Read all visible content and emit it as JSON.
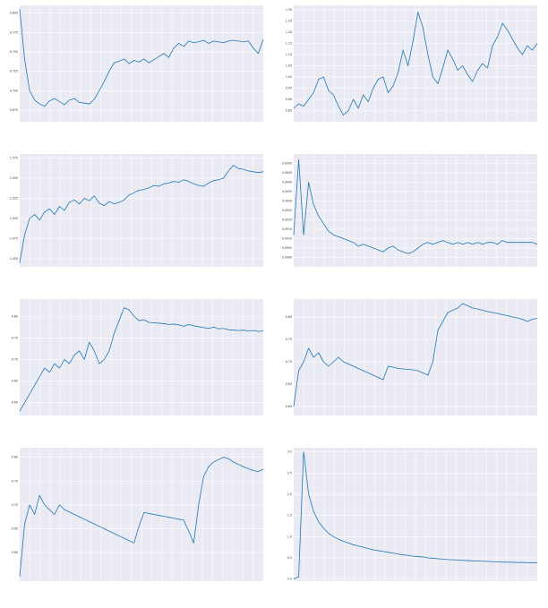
{
  "chart_data": [
    {
      "type": "line",
      "title": "",
      "xlabel": "",
      "ylabel": "",
      "ylim": [
        0.66,
        0.81
      ],
      "yticks": [
        "0.800",
        "0.775",
        "0.750",
        "0.725",
        "0.700",
        "0.675"
      ],
      "grid": true,
      "legend": "none",
      "series": [
        {
          "values": [
            0.805,
            0.74,
            0.7,
            0.688,
            0.683,
            0.68,
            0.687,
            0.69,
            0.686,
            0.682,
            0.688,
            0.69,
            0.685,
            0.684,
            0.683,
            0.689,
            0.7,
            0.712,
            0.725,
            0.736,
            0.738,
            0.741,
            0.735,
            0.739,
            0.737,
            0.741,
            0.736,
            0.74,
            0.744,
            0.748,
            0.743,
            0.755,
            0.761,
            0.757,
            0.764,
            0.762,
            0.763,
            0.765,
            0.761,
            0.764,
            0.763,
            0.762,
            0.764,
            0.765,
            0.764,
            0.763,
            0.764,
            0.755,
            0.748,
            0.766
          ]
        }
      ]
    },
    {
      "type": "line",
      "title": "",
      "xlabel": "",
      "ylabel": "",
      "ylim": [
        0.8,
        1.32
      ],
      "yticks": [
        "1.30",
        "1.25",
        "1.20",
        "1.15",
        "1.10",
        "1.05",
        "1.00",
        "0.95",
        "0.90",
        "0.85"
      ],
      "grid": true,
      "legend": "none",
      "series": [
        {
          "values": [
            0.86,
            0.88,
            0.87,
            0.9,
            0.93,
            0.99,
            1.0,
            0.94,
            0.92,
            0.87,
            0.83,
            0.85,
            0.9,
            0.86,
            0.92,
            0.89,
            0.95,
            0.99,
            1.0,
            0.93,
            0.96,
            1.02,
            1.12,
            1.05,
            1.16,
            1.29,
            1.22,
            1.1,
            1.0,
            0.97,
            1.04,
            1.12,
            1.08,
            1.03,
            1.05,
            1.01,
            0.98,
            1.03,
            1.06,
            1.04,
            1.14,
            1.18,
            1.24,
            1.21,
            1.17,
            1.13,
            1.1,
            1.14,
            1.12,
            1.15
          ]
        }
      ]
    },
    {
      "type": "line",
      "title": "",
      "xlabel": "",
      "ylabel": "",
      "ylim": [
        1.44,
        1.58
      ],
      "yticks": [
        "1.575",
        "1.550",
        "1.525",
        "1.500",
        "1.475",
        "1.450"
      ],
      "grid": true,
      "legend": "none",
      "series": [
        {
          "values": [
            1.445,
            1.48,
            1.5,
            1.505,
            1.498,
            1.508,
            1.512,
            1.505,
            1.515,
            1.51,
            1.52,
            1.523,
            1.518,
            1.525,
            1.522,
            1.528,
            1.519,
            1.516,
            1.521,
            1.518,
            1.52,
            1.523,
            1.529,
            1.532,
            1.535,
            1.536,
            1.538,
            1.541,
            1.54,
            1.543,
            1.544,
            1.546,
            1.545,
            1.548,
            1.546,
            1.543,
            1.541,
            1.54,
            1.544,
            1.547,
            1.548,
            1.55,
            1.559,
            1.566,
            1.562,
            1.561,
            1.559,
            1.558,
            1.557,
            1.558
          ]
        }
      ]
    },
    {
      "type": "line",
      "title": "",
      "xlabel": "",
      "ylabel": "",
      "ylim": [
        0.0895,
        0.0955
      ],
      "yticks": [
        "0.0950",
        "0.0945",
        "0.0940",
        "0.0935",
        "0.0930",
        "0.0925",
        "0.0920",
        "0.0915",
        "0.0910",
        "0.0905",
        "0.0900"
      ],
      "grid": true,
      "legend": "none",
      "series": [
        {
          "values": [
            0.0912,
            0.0952,
            0.0912,
            0.094,
            0.0928,
            0.0922,
            0.0918,
            0.0914,
            0.0912,
            0.0911,
            0.091,
            0.0909,
            0.0908,
            0.0906,
            0.0907,
            0.0906,
            0.0905,
            0.0904,
            0.0903,
            0.0905,
            0.0906,
            0.0904,
            0.0903,
            0.0902,
            0.0903,
            0.0905,
            0.0907,
            0.0908,
            0.0907,
            0.0908,
            0.0909,
            0.0908,
            0.0907,
            0.0908,
            0.0907,
            0.0908,
            0.0907,
            0.0908,
            0.0907,
            0.0908,
            0.0908,
            0.0907,
            0.0909,
            0.0908,
            0.0908,
            0.0908,
            0.0908,
            0.0908,
            0.0908,
            0.0907
          ]
        }
      ]
    },
    {
      "type": "line",
      "title": "",
      "xlabel": "",
      "ylabel": "",
      "ylim": [
        0.57,
        0.84
      ],
      "yticks": [
        "0.80",
        "0.75",
        "0.70",
        "0.65",
        "0.60"
      ],
      "grid": true,
      "legend": "none",
      "series": [
        {
          "values": [
            0.58,
            0.6,
            0.62,
            0.64,
            0.66,
            0.68,
            0.67,
            0.69,
            0.68,
            0.7,
            0.69,
            0.71,
            0.72,
            0.7,
            0.74,
            0.72,
            0.69,
            0.7,
            0.72,
            0.76,
            0.79,
            0.82,
            0.815,
            0.8,
            0.79,
            0.792,
            0.786,
            0.785,
            0.784,
            0.783,
            0.781,
            0.782,
            0.78,
            0.777,
            0.781,
            0.778,
            0.776,
            0.774,
            0.772,
            0.775,
            0.771,
            0.772,
            0.769,
            0.768,
            0.767,
            0.768,
            0.766,
            0.767,
            0.765,
            0.766
          ]
        }
      ]
    },
    {
      "type": "line",
      "title": "",
      "xlabel": "",
      "ylabel": "",
      "ylim": [
        0.58,
        0.84
      ],
      "yticks": [
        "0.80",
        "0.75",
        "0.70",
        "0.65",
        "0.60"
      ],
      "grid": true,
      "legend": "none",
      "series": [
        {
          "values": [
            0.6,
            0.68,
            0.7,
            0.73,
            0.71,
            0.72,
            0.7,
            0.69,
            0.7,
            0.71,
            0.7,
            0.695,
            0.69,
            0.685,
            0.68,
            0.675,
            0.67,
            0.665,
            0.66,
            0.69,
            0.688,
            0.685,
            0.684,
            0.683,
            0.682,
            0.68,
            0.675,
            0.67,
            0.7,
            0.77,
            0.79,
            0.81,
            0.815,
            0.82,
            0.83,
            0.825,
            0.82,
            0.818,
            0.815,
            0.812,
            0.81,
            0.808,
            0.805,
            0.803,
            0.8,
            0.798,
            0.795,
            0.79,
            0.795,
            0.797
          ]
        }
      ]
    },
    {
      "type": "line",
      "title": "",
      "xlabel": "",
      "ylabel": "",
      "ylim": [
        0.54,
        0.82
      ],
      "yticks": [
        "0.80",
        "0.75",
        "0.70",
        "0.65",
        "0.60"
      ],
      "grid": true,
      "legend": "none",
      "series": [
        {
          "values": [
            0.55,
            0.66,
            0.7,
            0.68,
            0.72,
            0.7,
            0.69,
            0.68,
            0.7,
            0.69,
            0.685,
            0.68,
            0.675,
            0.67,
            0.665,
            0.66,
            0.655,
            0.65,
            0.645,
            0.64,
            0.635,
            0.63,
            0.625,
            0.62,
            0.655,
            0.684,
            0.682,
            0.68,
            0.678,
            0.676,
            0.674,
            0.672,
            0.67,
            0.668,
            0.645,
            0.62,
            0.7,
            0.76,
            0.78,
            0.79,
            0.795,
            0.8,
            0.797,
            0.79,
            0.785,
            0.78,
            0.776,
            0.772,
            0.77,
            0.775
          ]
        }
      ]
    },
    {
      "type": "line",
      "title": "",
      "xlabel": "",
      "ylabel": "",
      "ylim": [
        -0.05,
        3.1
      ],
      "yticks": [
        "3.0",
        "2.5",
        "2.0",
        "1.5",
        "1.0",
        "0.5",
        "0.0"
      ],
      "grid": true,
      "legend": "none",
      "series": [
        {
          "values": [
            0.0,
            0.05,
            3.0,
            2.0,
            1.6,
            1.35,
            1.2,
            1.08,
            1.0,
            0.94,
            0.89,
            0.85,
            0.81,
            0.78,
            0.75,
            0.72,
            0.69,
            0.67,
            0.65,
            0.63,
            0.61,
            0.59,
            0.57,
            0.56,
            0.54,
            0.53,
            0.52,
            0.5,
            0.49,
            0.48,
            0.47,
            0.46,
            0.455,
            0.45,
            0.44,
            0.435,
            0.43,
            0.425,
            0.42,
            0.415,
            0.41,
            0.405,
            0.4,
            0.398,
            0.395,
            0.392,
            0.39,
            0.388,
            0.385,
            0.384
          ]
        }
      ]
    }
  ]
}
